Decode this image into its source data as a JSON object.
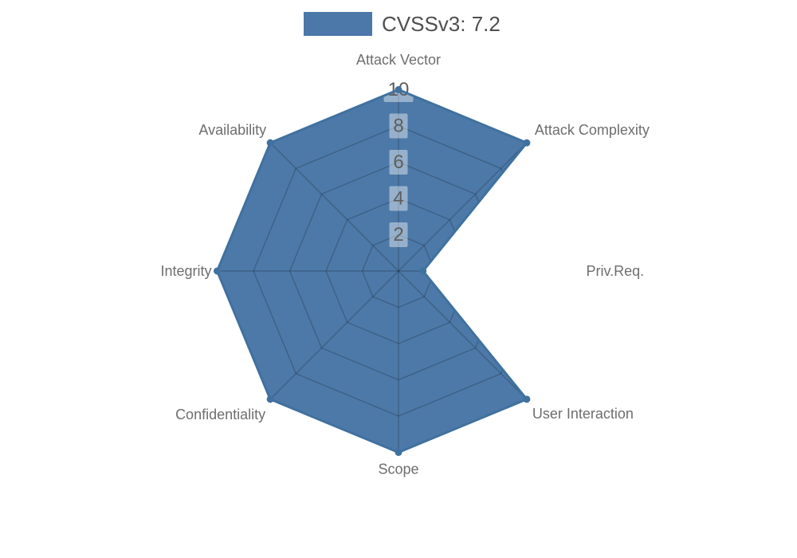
{
  "legend": {
    "label": "CVSSv3: 7.2",
    "swatch_color": "#4b77a9"
  },
  "chart_data": {
    "type": "radar",
    "title": "",
    "legend_entries": [
      {
        "label": "CVSSv3: 7.2",
        "color": "#4b77a9"
      }
    ],
    "legend_position": "top-center",
    "categories": [
      "Attack Vector",
      "Attack Complexity",
      "Priv.Req.",
      "User Interaction",
      "Scope",
      "Confidentiality",
      "Integrity",
      "Availability"
    ],
    "series": [
      {
        "name": "CVSSv3: 7.2",
        "values": [
          10,
          10,
          1.35,
          10,
          10,
          10,
          10,
          10
        ]
      }
    ],
    "radial_ticks": [
      "2",
      "4",
      "6",
      "8",
      "10"
    ],
    "radial_tick_values": [
      2,
      4,
      6,
      8,
      10
    ],
    "rlim": [
      0,
      10
    ],
    "start_angle_deg": 90,
    "direction": "clockwise",
    "grid": "polygonal web with 8 spokes, visible only inside filled area",
    "markers": "dot at each vertex"
  },
  "colors": {
    "background": "#ffffff",
    "fill": "#4d79a8",
    "stroke": "#40719f",
    "marker": "#40719f",
    "grid_line": "rgba(0,0,0,0.20)",
    "tick_box": "rgba(255,255,255,0.42)",
    "tick_text": "#5e5e5e",
    "axis_label_text": "#6e6e6e",
    "legend_text": "#4f4f4f"
  }
}
